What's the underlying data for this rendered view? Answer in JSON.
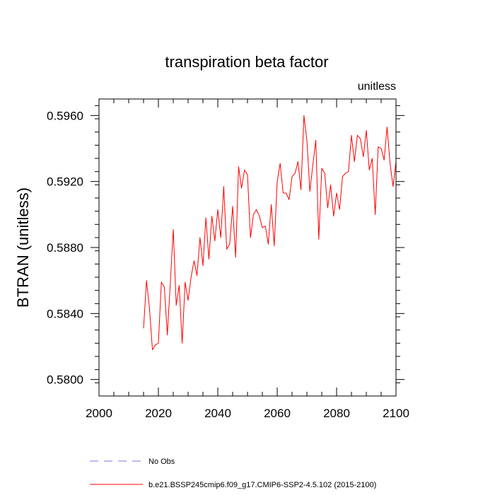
{
  "chart_data": {
    "type": "line",
    "title": "transpiration beta factor",
    "units_label": "unitless",
    "xlabel": "",
    "ylabel": "BTRAN  (unitless)",
    "xlim": [
      2000,
      2100
    ],
    "ylim": [
      0.579,
      0.597
    ],
    "x_ticks": [
      2000,
      2020,
      2040,
      2060,
      2080,
      2100
    ],
    "x_tick_labels": [
      "2000",
      "2020",
      "2040",
      "2060",
      "2080",
      "2100"
    ],
    "y_ticks": [
      0.58,
      0.584,
      0.588,
      0.592,
      0.596
    ],
    "y_tick_labels": [
      "0.5800",
      "0.5840",
      "0.5880",
      "0.5920",
      "0.5960"
    ],
    "grid": false,
    "legend_position": "bottom",
    "series": [
      {
        "name": "No Obs",
        "color": "#7a7ae6",
        "dash": "dashed",
        "x": [],
        "values": []
      },
      {
        "name": "b.e21.BSSP245cmip6.f09_g17.CMIP6-SSP2-4.5.102 (2015-2100)",
        "color": "#ff0000",
        "dash": "solid",
        "x": [
          2015,
          2016,
          2017,
          2018,
          2019,
          2020,
          2021,
          2022,
          2023,
          2024,
          2025,
          2026,
          2027,
          2028,
          2029,
          2030,
          2031,
          2032,
          2033,
          2034,
          2035,
          2036,
          2037,
          2038,
          2039,
          2040,
          2041,
          2042,
          2043,
          2044,
          2045,
          2046,
          2047,
          2048,
          2049,
          2050,
          2051,
          2052,
          2053,
          2054,
          2055,
          2056,
          2057,
          2058,
          2059,
          2060,
          2061,
          2062,
          2063,
          2064,
          2065,
          2066,
          2067,
          2068,
          2069,
          2070,
          2071,
          2072,
          2073,
          2074,
          2075,
          2076,
          2077,
          2078,
          2079,
          2080,
          2081,
          2082,
          2083,
          2084,
          2085,
          2086,
          2087,
          2088,
          2089,
          2090,
          2091,
          2092,
          2093,
          2094,
          2095,
          2096,
          2097,
          2098,
          2099,
          2100
        ],
        "values": [
          0.5831,
          0.586,
          0.5843,
          0.5818,
          0.5821,
          0.5822,
          0.5859,
          0.5856,
          0.5827,
          0.5858,
          0.5891,
          0.5845,
          0.5857,
          0.5822,
          0.5859,
          0.5848,
          0.5862,
          0.5872,
          0.5863,
          0.5886,
          0.5869,
          0.5898,
          0.5873,
          0.5899,
          0.5884,
          0.5903,
          0.5886,
          0.5917,
          0.5879,
          0.5882,
          0.5905,
          0.5874,
          0.5929,
          0.5916,
          0.5927,
          0.5924,
          0.5886,
          0.59,
          0.5903,
          0.5899,
          0.5892,
          0.5893,
          0.5882,
          0.5906,
          0.5881,
          0.592,
          0.5931,
          0.5913,
          0.5913,
          0.5909,
          0.5923,
          0.5925,
          0.5932,
          0.5915,
          0.596,
          0.5945,
          0.5914,
          0.593,
          0.5945,
          0.5885,
          0.5928,
          0.5925,
          0.5904,
          0.5918,
          0.5899,
          0.5913,
          0.5903,
          0.5923,
          0.5925,
          0.5926,
          0.5948,
          0.5932,
          0.5948,
          0.5946,
          0.5935,
          0.5951,
          0.5927,
          0.5934,
          0.59,
          0.5941,
          0.594,
          0.5933,
          0.5953,
          0.5931,
          0.5917,
          0.5932
        ]
      }
    ]
  }
}
